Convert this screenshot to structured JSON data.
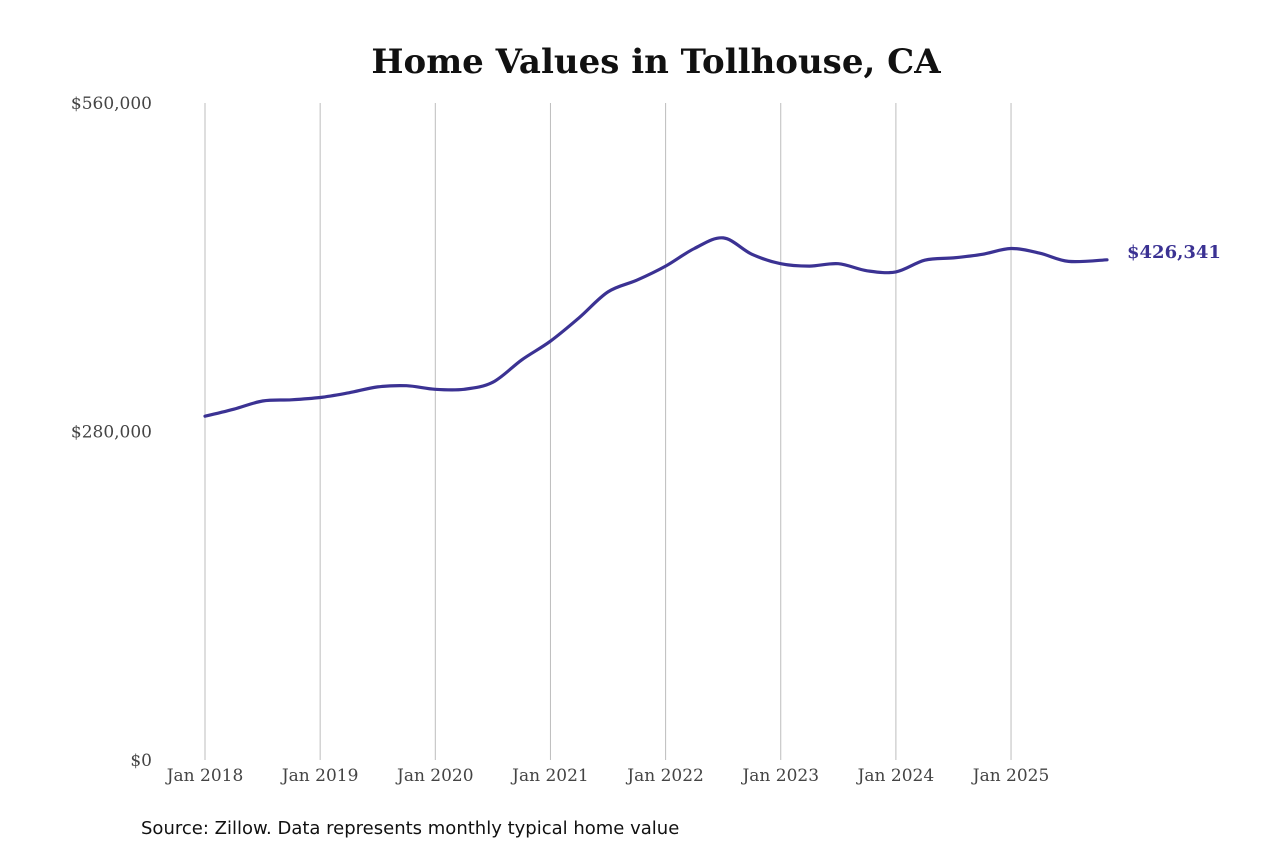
{
  "chart_data": {
    "type": "line",
    "title": "Home Values in Tollhouse, CA",
    "source": "Source: Zillow. Data represents monthly typical home value",
    "xlabel": "",
    "ylabel": "",
    "x_range": [
      "2018-01",
      "2025-11"
    ],
    "ylim": [
      0,
      560000
    ],
    "y_ticks": [
      {
        "value": 0,
        "label": "$0"
      },
      {
        "value": 280000,
        "label": "$280,000"
      },
      {
        "value": 560000,
        "label": "$560,000"
      }
    ],
    "x_ticks": [
      {
        "date": "2018-01",
        "label": "Jan 2018"
      },
      {
        "date": "2019-01",
        "label": "Jan 2019"
      },
      {
        "date": "2020-01",
        "label": "Jan 2020"
      },
      {
        "date": "2021-01",
        "label": "Jan 2021"
      },
      {
        "date": "2022-01",
        "label": "Jan 2022"
      },
      {
        "date": "2023-01",
        "label": "Jan 2023"
      },
      {
        "date": "2024-01",
        "label": "Jan 2024"
      },
      {
        "date": "2025-01",
        "label": "Jan 2025"
      }
    ],
    "grid": "vertical",
    "line_color": "#3b3293",
    "series": [
      {
        "x": [
          "2018-01",
          "2018-04",
          "2018-07",
          "2018-10",
          "2019-01",
          "2019-04",
          "2019-07",
          "2019-10",
          "2020-01",
          "2020-04",
          "2020-07",
          "2020-10",
          "2021-01",
          "2021-04",
          "2021-07",
          "2021-10",
          "2022-01",
          "2022-04",
          "2022-07",
          "2022-10",
          "2023-01",
          "2023-04",
          "2023-07",
          "2023-10",
          "2024-01",
          "2024-04",
          "2024-07",
          "2024-10",
          "2025-01",
          "2025-04",
          "2025-07",
          "2025-11"
        ],
        "values": [
          293000,
          299000,
          306000,
          307000,
          309000,
          313000,
          318000,
          319000,
          316000,
          316000,
          322000,
          341000,
          357000,
          377000,
          399000,
          409000,
          421000,
          436000,
          445000,
          431000,
          423000,
          421000,
          423000,
          417000,
          416000,
          426000,
          428000,
          431000,
          436000,
          432000,
          425000,
          426341
        ]
      }
    ],
    "end_label": "$426,341"
  }
}
